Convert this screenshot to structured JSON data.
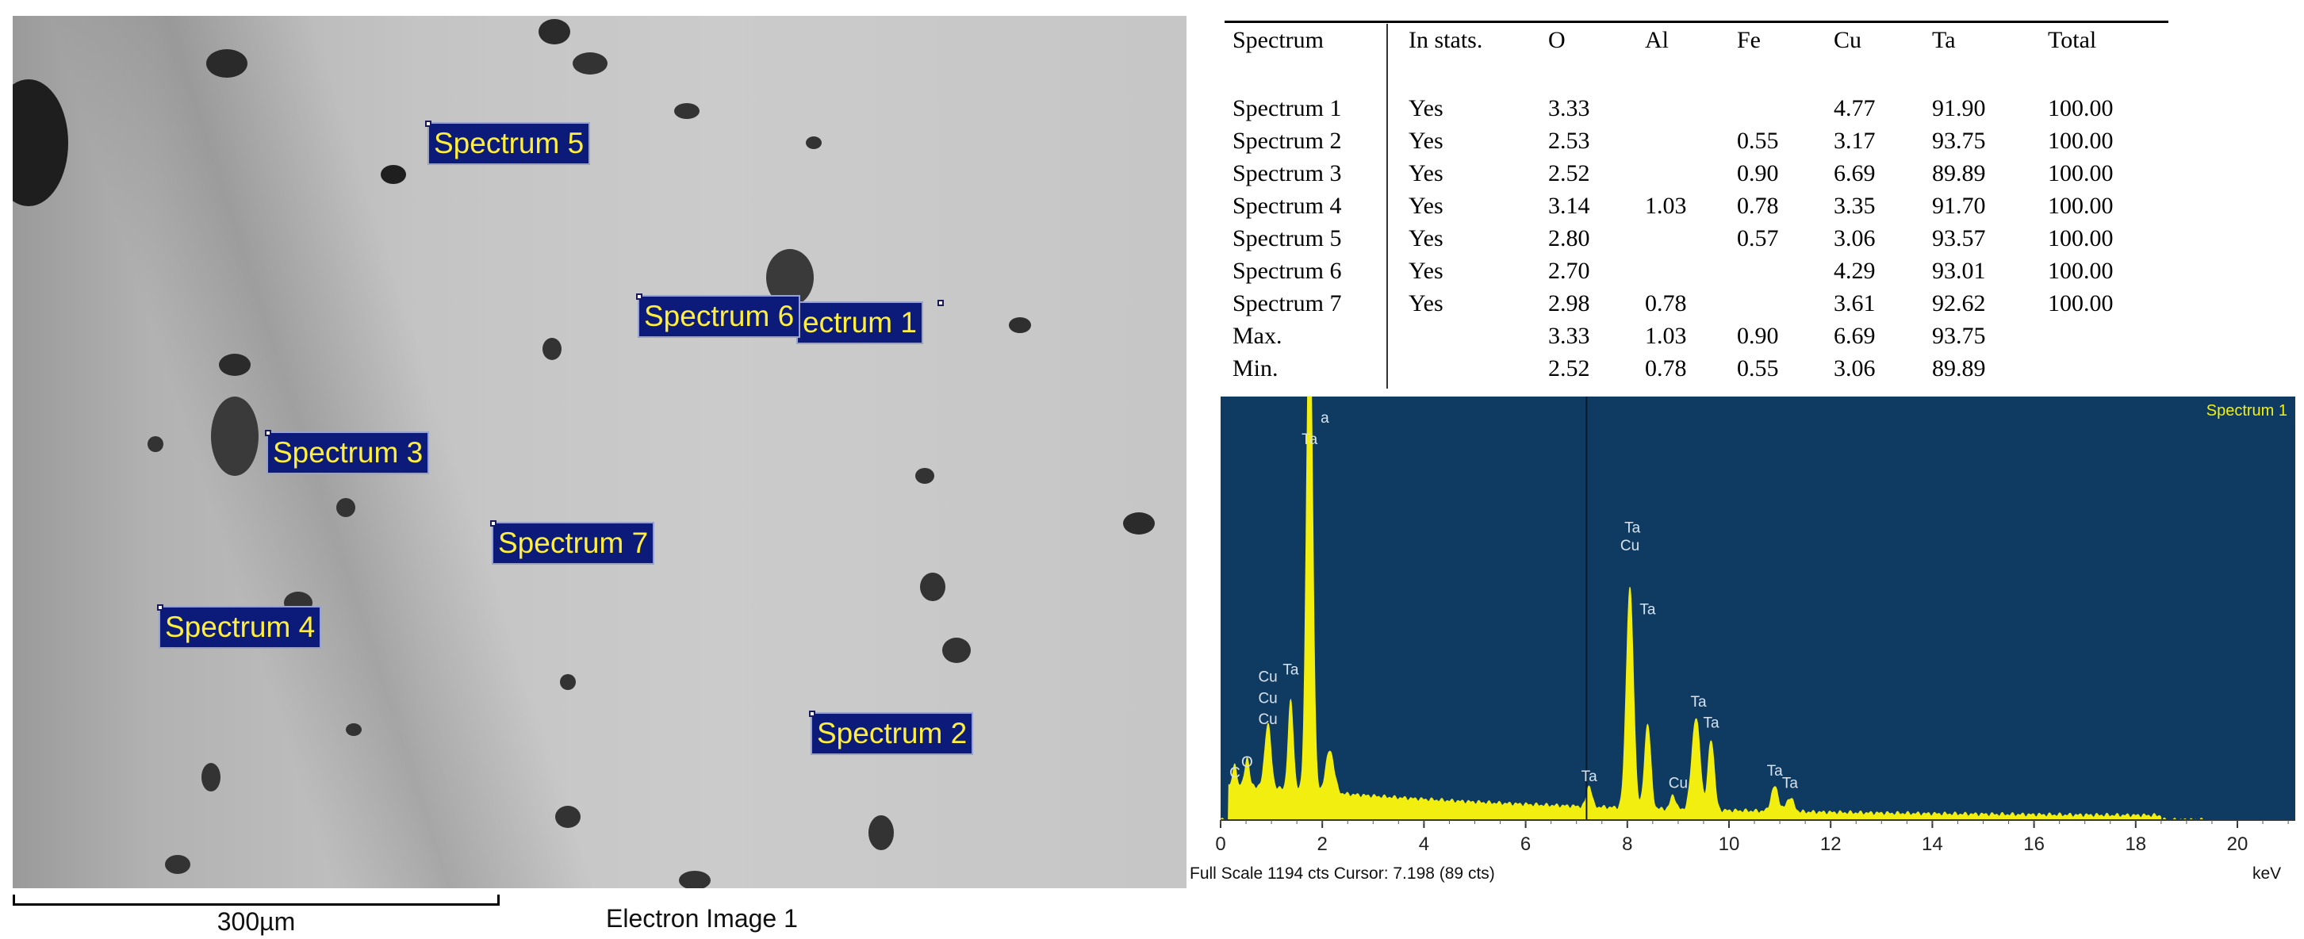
{
  "sem_image": {
    "scale_bar_label": "300µm",
    "caption": "Electron Image 1",
    "spectrum_labels": [
      {
        "text": "Spectrum 5"
      },
      {
        "text": "Spectrum 6"
      },
      {
        "text": "ectrum 1"
      },
      {
        "text": "Spectrum 3"
      },
      {
        "text": "Spectrum 7"
      },
      {
        "text": "Spectrum 4"
      },
      {
        "text": "Spectrum 2"
      }
    ]
  },
  "table": {
    "headers": [
      "Spectrum",
      "In stats.",
      "O",
      "Al",
      "Fe",
      "Cu",
      "Ta",
      "Total"
    ],
    "rows": [
      [
        "Spectrum 1",
        "Yes",
        "3.33",
        "",
        "",
        "4.77",
        "91.90",
        "100.00"
      ],
      [
        "Spectrum 2",
        "Yes",
        "2.53",
        "",
        "0.55",
        "3.17",
        "93.75",
        "100.00"
      ],
      [
        "Spectrum 3",
        "Yes",
        "2.52",
        "",
        "0.90",
        "6.69",
        "89.89",
        "100.00"
      ],
      [
        "Spectrum 4",
        "Yes",
        "3.14",
        "1.03",
        "0.78",
        "3.35",
        "91.70",
        "100.00"
      ],
      [
        "Spectrum 5",
        "Yes",
        "2.80",
        "",
        "0.57",
        "3.06",
        "93.57",
        "100.00"
      ],
      [
        "Spectrum 6",
        "Yes",
        "2.70",
        "",
        "",
        "4.29",
        "93.01",
        "100.00"
      ],
      [
        "Spectrum 7",
        "Yes",
        "2.98",
        "0.78",
        "",
        "3.61",
        "92.62",
        "100.00"
      ],
      [
        "Max.",
        "",
        "3.33",
        "1.03",
        "0.90",
        "6.69",
        "93.75",
        ""
      ],
      [
        "Min.",
        "",
        "2.52",
        "0.78",
        "0.55",
        "3.06",
        "89.89",
        ""
      ]
    ]
  },
  "spectrum": {
    "legend": "Spectrum 1",
    "footer": "Full Scale 1194 cts Cursor: 7.198  (89 cts)",
    "unit": "keV",
    "cursor_kev": 7.198,
    "x_ticks": [
      "0",
      "2",
      "4",
      "6",
      "8",
      "10",
      "12",
      "14",
      "16",
      "18",
      "20"
    ],
    "peak_labels": [
      {
        "text": "C",
        "kev": 0.28,
        "cts": 120
      },
      {
        "text": "O",
        "kev": 0.52,
        "cts": 150
      },
      {
        "text": "Cu",
        "kev": 0.93,
        "cts": 270
      },
      {
        "text": "Cu",
        "kev": 0.93,
        "cts": 330
      },
      {
        "text": "Cu",
        "kev": 0.93,
        "cts": 390
      },
      {
        "text": "Ta",
        "kev": 1.38,
        "cts": 410
      },
      {
        "text": "Ta",
        "kev": 1.75,
        "cts": 1060
      },
      {
        "text": "a",
        "kev": 2.05,
        "cts": 1120
      },
      {
        "text": "Ta",
        "kev": 7.25,
        "cts": 110
      },
      {
        "text": "Ta",
        "kev": 8.1,
        "cts": 810
      },
      {
        "text": "Cu",
        "kev": 8.05,
        "cts": 760
      },
      {
        "text": "Ta",
        "kev": 8.4,
        "cts": 580
      },
      {
        "text": "Cu",
        "kev": 9.0,
        "cts": 90
      },
      {
        "text": "Ta",
        "kev": 9.4,
        "cts": 320
      },
      {
        "text": "Ta",
        "kev": 9.65,
        "cts": 260
      },
      {
        "text": "Ta",
        "kev": 10.9,
        "cts": 125
      },
      {
        "text": "Ta",
        "kev": 11.2,
        "cts": 90
      }
    ],
    "colors": {
      "background": "#0f3b63",
      "signal": "#f2ef10",
      "labels": "#d7e2ee",
      "legend": "#f2ef10"
    }
  }
}
